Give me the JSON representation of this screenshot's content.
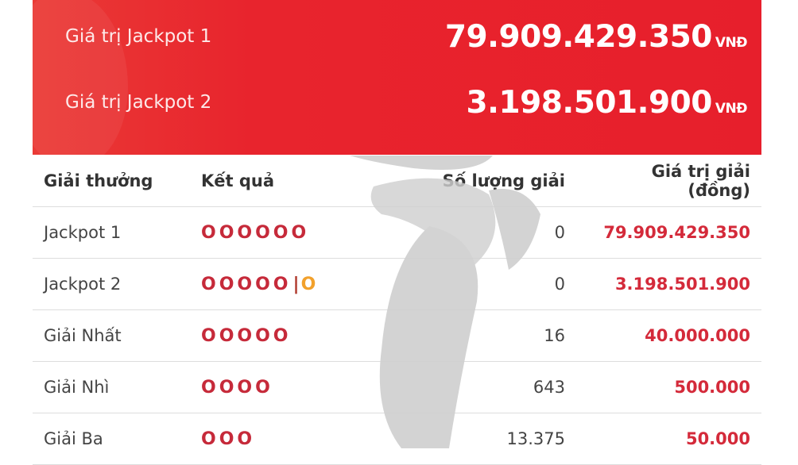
{
  "jackpots": [
    {
      "label": "Giá trị Jackpot 1",
      "value": "79.909.429.350",
      "unit": "VNĐ"
    },
    {
      "label": "Giá trị Jackpot 2",
      "value": "3.198.501.900",
      "unit": "VNĐ"
    }
  ],
  "table": {
    "headers": [
      "Giải thưởng",
      "Kết quả",
      "Số lượng giải",
      "Giá trị giải (đồng)"
    ],
    "rows": [
      {
        "name": "Jackpot 1",
        "balls": "OOOOOO",
        "extra": "",
        "count": "0",
        "prize": "79.909.429.350"
      },
      {
        "name": "Jackpot 2",
        "balls": "OOOOO",
        "extra": "O",
        "count": "0",
        "prize": "3.198.501.900"
      },
      {
        "name": "Giải Nhất",
        "balls": "OOOOO",
        "extra": "",
        "count": "16",
        "prize": "40.000.000"
      },
      {
        "name": "Giải Nhì",
        "balls": "OOOO",
        "extra": "",
        "count": "643",
        "prize": "500.000"
      },
      {
        "name": "Giải Ba",
        "balls": "OOO",
        "extra": "",
        "count": "13.375",
        "prize": "50.000"
      }
    ]
  },
  "colors": {
    "banner": "#e71f2c",
    "prize": "#d42a3a",
    "ball": "#c62a3a",
    "extra_ball": "#f2a12c"
  }
}
